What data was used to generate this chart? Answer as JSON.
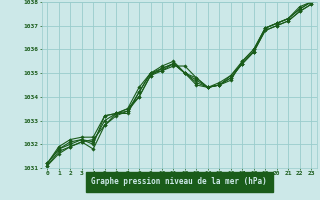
{
  "title": "Graphe pression niveau de la mer (hPa)",
  "bg_color": "#cce8e8",
  "grid_color": "#99cccc",
  "line_color": "#1a5c1a",
  "marker_color": "#1a5c1a",
  "label_bg": "#1a5c1a",
  "label_fg": "#cce8e8",
  "xlim": [
    -0.5,
    23.5
  ],
  "ylim": [
    1031,
    1038
  ],
  "xticks": [
    0,
    1,
    2,
    3,
    4,
    5,
    6,
    7,
    8,
    9,
    10,
    11,
    12,
    13,
    14,
    15,
    16,
    17,
    18,
    19,
    20,
    21,
    22,
    23
  ],
  "yticks": [
    1031,
    1032,
    1033,
    1034,
    1035,
    1036,
    1037,
    1038
  ],
  "series": [
    [
      1031.2,
      1031.8,
      1032.0,
      1032.2,
      1032.0,
      1033.2,
      1033.3,
      1033.3,
      1034.2,
      1035.0,
      1035.3,
      1035.5,
      1035.0,
      1034.5,
      1034.4,
      1034.5,
      1034.7,
      1035.5,
      1036.0,
      1036.9,
      1037.1,
      1037.3,
      1037.8,
      1038.0
    ],
    [
      1031.1,
      1031.7,
      1031.9,
      1032.1,
      1032.2,
      1032.8,
      1033.2,
      1033.4,
      1034.0,
      1034.9,
      1035.1,
      1035.3,
      1035.3,
      1034.8,
      1034.4,
      1034.5,
      1034.9,
      1035.4,
      1035.9,
      1036.8,
      1037.0,
      1037.2,
      1037.6,
      1037.9
    ],
    [
      1031.1,
      1031.6,
      1031.9,
      1032.1,
      1031.8,
      1032.8,
      1033.3,
      1033.5,
      1034.0,
      1034.9,
      1035.2,
      1035.4,
      1035.0,
      1034.8,
      1034.4,
      1034.5,
      1034.8,
      1035.4,
      1035.9,
      1036.8,
      1037.0,
      1037.2,
      1037.6,
      1037.9
    ],
    [
      1031.2,
      1031.9,
      1032.2,
      1032.3,
      1032.3,
      1033.2,
      1033.3,
      1033.5,
      1034.4,
      1035.0,
      1035.1,
      1035.4,
      1035.0,
      1034.7,
      1034.4,
      1034.6,
      1034.9,
      1035.5,
      1036.0,
      1036.9,
      1037.1,
      1037.3,
      1037.7,
      1038.0
    ],
    [
      1031.2,
      1031.8,
      1032.1,
      1032.2,
      1032.1,
      1033.0,
      1033.3,
      1033.4,
      1034.2,
      1035.0,
      1035.2,
      1035.4,
      1035.0,
      1034.6,
      1034.4,
      1034.5,
      1034.8,
      1035.4,
      1035.9,
      1036.9,
      1037.1,
      1037.3,
      1037.7,
      1038.0
    ]
  ]
}
